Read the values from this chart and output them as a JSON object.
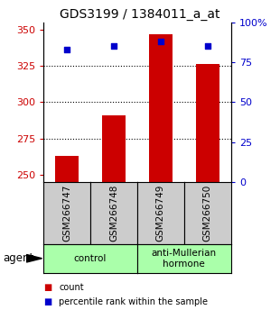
{
  "title": "GDS3199 / 1384011_a_at",
  "samples": [
    "GSM266747",
    "GSM266748",
    "GSM266749",
    "GSM266750"
  ],
  "counts": [
    263,
    291,
    347,
    326
  ],
  "percentiles": [
    83,
    85,
    88,
    85
  ],
  "ymin": 245,
  "ymax": 355,
  "yticks_left": [
    250,
    275,
    300,
    325,
    350
  ],
  "yticks_right": [
    0,
    25,
    50,
    75,
    100
  ],
  "grid_lines": [
    275,
    300,
    325
  ],
  "bar_color": "#cc0000",
  "dot_color": "#0000cc",
  "left_axis_color": "#cc0000",
  "right_axis_color": "#0000cc",
  "agent_groups": [
    {
      "label": "control",
      "span": [
        0,
        2
      ],
      "color": "#aaffaa"
    },
    {
      "label": "anti-Mullerian\nhormone",
      "span": [
        2,
        4
      ],
      "color": "#aaffaa"
    }
  ],
  "bar_width": 0.5,
  "sample_box_color": "#cccccc",
  "legend_items": [
    {
      "color": "#cc0000",
      "label": "count"
    },
    {
      "color": "#0000cc",
      "label": "percentile rank within the sample"
    }
  ]
}
